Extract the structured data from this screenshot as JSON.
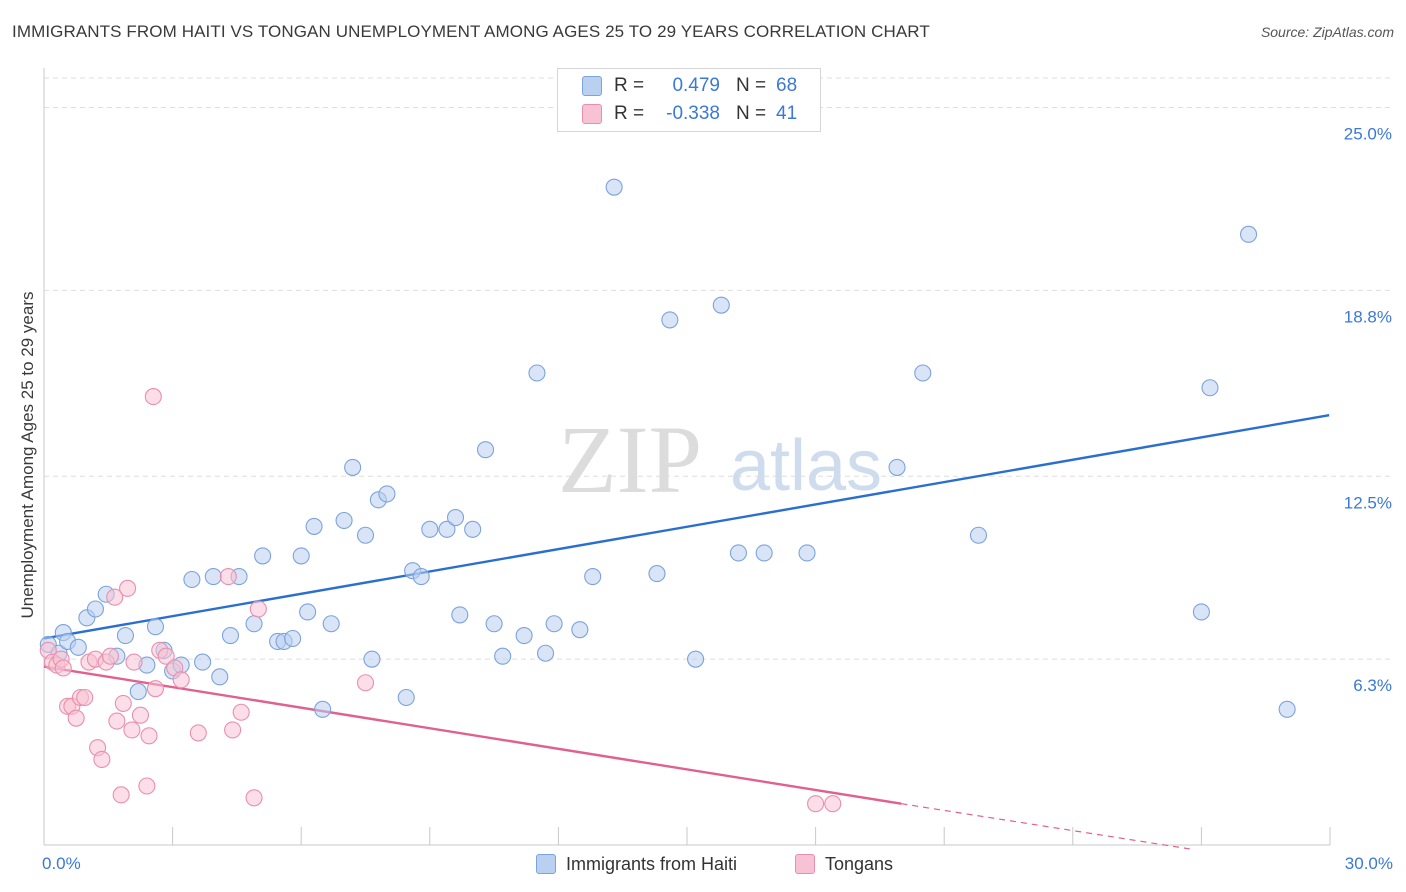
{
  "title": "IMMIGRANTS FROM HAITI VS TONGAN UNEMPLOYMENT AMONG AGES 25 TO 29 YEARS CORRELATION CHART",
  "source": "Source: ZipAtlas.com",
  "watermark": {
    "zip": "ZIP",
    "atlas": "atlas"
  },
  "legend": {
    "rows": [
      {
        "r_label": "R =",
        "r_value": "0.479",
        "n_label": "N =",
        "n_value": "68"
      },
      {
        "r_label": "R =",
        "r_value": "-0.338",
        "n_label": "N =",
        "n_value": "41"
      }
    ]
  },
  "chart_data": {
    "type": "scatter",
    "title": "IMMIGRANTS FROM HAITI VS TONGAN UNEMPLOYMENT AMONG AGES 25 TO 29 YEARS CORRELATION CHART",
    "xlabel": "",
    "ylabel": "Unemployment Among Ages 25 to 29 years",
    "xlim": [
      0,
      30
    ],
    "ylim": [
      0,
      26
    ],
    "x_tick_labels": [
      "0.0%",
      "30.0%"
    ],
    "y_ticks": [
      6.3,
      12.5,
      18.8,
      25.0
    ],
    "y_tick_labels": [
      "6.3%",
      "12.5%",
      "18.8%",
      "25.0%"
    ],
    "grid": true,
    "colors": {
      "haiti_fill": "#b9d0f0",
      "haiti_stroke": "#7ba3dc",
      "haiti_line": "#2a6fcf",
      "tongan_fill": "#f7c3d4",
      "tongan_stroke": "#e98fae",
      "tongan_line": "#e0608e",
      "axis_text": "#3b78d8"
    },
    "series": [
      {
        "name": "Immigrants from Haiti",
        "r": 0.479,
        "n": 68,
        "trend": {
          "x0": 0,
          "y0": 7.0,
          "x1": 29.98,
          "y1": 14.57,
          "dashed_to": null
        },
        "points": [
          [
            0.1,
            6.8
          ],
          [
            0.35,
            6.5
          ],
          [
            0.45,
            7.2
          ],
          [
            0.55,
            6.9
          ],
          [
            0.8,
            6.7
          ],
          [
            1.0,
            7.7
          ],
          [
            1.2,
            8.0
          ],
          [
            1.45,
            8.5
          ],
          [
            1.7,
            6.4
          ],
          [
            1.9,
            7.1
          ],
          [
            2.2,
            5.2
          ],
          [
            2.4,
            6.1
          ],
          [
            2.6,
            7.4
          ],
          [
            2.8,
            6.6
          ],
          [
            3.0,
            5.9
          ],
          [
            3.2,
            6.1
          ],
          [
            3.45,
            9.0
          ],
          [
            3.7,
            6.2
          ],
          [
            3.95,
            9.1
          ],
          [
            4.1,
            5.7
          ],
          [
            4.35,
            7.1
          ],
          [
            4.55,
            9.1
          ],
          [
            4.9,
            7.5
          ],
          [
            5.1,
            9.8
          ],
          [
            5.45,
            6.9
          ],
          [
            5.6,
            6.9
          ],
          [
            5.8,
            7.0
          ],
          [
            6.0,
            9.8
          ],
          [
            6.15,
            7.9
          ],
          [
            6.3,
            10.8
          ],
          [
            6.5,
            4.6
          ],
          [
            6.7,
            7.5
          ],
          [
            7.0,
            11.0
          ],
          [
            7.2,
            12.8
          ],
          [
            7.5,
            10.5
          ],
          [
            7.65,
            6.3
          ],
          [
            7.8,
            11.7
          ],
          [
            8.0,
            11.9
          ],
          [
            8.45,
            5.0
          ],
          [
            8.6,
            9.3
          ],
          [
            8.8,
            9.1
          ],
          [
            9.0,
            10.7
          ],
          [
            9.4,
            10.7
          ],
          [
            9.6,
            11.1
          ],
          [
            9.7,
            7.8
          ],
          [
            10.0,
            10.7
          ],
          [
            10.3,
            13.4
          ],
          [
            10.5,
            7.5
          ],
          [
            10.7,
            6.4
          ],
          [
            11.2,
            7.1
          ],
          [
            11.5,
            16.0
          ],
          [
            11.7,
            6.5
          ],
          [
            11.9,
            7.5
          ],
          [
            12.5,
            7.3
          ],
          [
            12.8,
            9.1
          ],
          [
            13.3,
            22.3
          ],
          [
            14.3,
            9.2
          ],
          [
            14.6,
            17.8
          ],
          [
            15.2,
            6.3
          ],
          [
            15.8,
            18.3
          ],
          [
            16.2,
            9.9
          ],
          [
            16.8,
            9.9
          ],
          [
            17.8,
            9.9
          ],
          [
            19.9,
            12.8
          ],
          [
            20.5,
            16.0
          ],
          [
            21.8,
            10.5
          ],
          [
            27.0,
            7.9
          ],
          [
            27.2,
            15.5
          ],
          [
            28.1,
            20.7
          ],
          [
            29.0,
            4.6
          ]
        ]
      },
      {
        "name": "Tongans",
        "r": -0.338,
        "n": 41,
        "trend": {
          "x0": 0,
          "y0": 6.05,
          "x1": 20.0,
          "y1": 1.4,
          "dashed_to": [
            26.8,
            -0.15
          ]
        },
        "points": [
          [
            0.1,
            6.6
          ],
          [
            0.2,
            6.2
          ],
          [
            0.3,
            6.1
          ],
          [
            0.4,
            6.3
          ],
          [
            0.45,
            6.0
          ],
          [
            0.55,
            4.7
          ],
          [
            0.65,
            4.7
          ],
          [
            0.75,
            4.3
          ],
          [
            0.85,
            5.0
          ],
          [
            0.95,
            5.0
          ],
          [
            1.05,
            6.2
          ],
          [
            1.2,
            6.3
          ],
          [
            1.25,
            3.3
          ],
          [
            1.35,
            2.9
          ],
          [
            1.45,
            6.2
          ],
          [
            1.55,
            6.4
          ],
          [
            1.65,
            8.4
          ],
          [
            1.7,
            4.2
          ],
          [
            1.8,
            1.7
          ],
          [
            1.85,
            4.8
          ],
          [
            1.95,
            8.7
          ],
          [
            2.05,
            3.9
          ],
          [
            2.1,
            6.2
          ],
          [
            2.25,
            4.4
          ],
          [
            2.4,
            2.0
          ],
          [
            2.45,
            3.7
          ],
          [
            2.55,
            15.2
          ],
          [
            2.6,
            5.3
          ],
          [
            2.7,
            6.6
          ],
          [
            2.85,
            6.4
          ],
          [
            3.05,
            6.0
          ],
          [
            3.2,
            5.6
          ],
          [
            3.6,
            3.8
          ],
          [
            4.3,
            9.1
          ],
          [
            4.4,
            3.9
          ],
          [
            4.6,
            4.5
          ],
          [
            4.9,
            1.6
          ],
          [
            5.0,
            8.0
          ],
          [
            7.5,
            5.5
          ],
          [
            18.0,
            1.4
          ],
          [
            18.4,
            1.4
          ]
        ]
      }
    ]
  },
  "bottom_legend": [
    {
      "label": "Immigrants from Haiti"
    },
    {
      "label": "Tongans"
    }
  ]
}
